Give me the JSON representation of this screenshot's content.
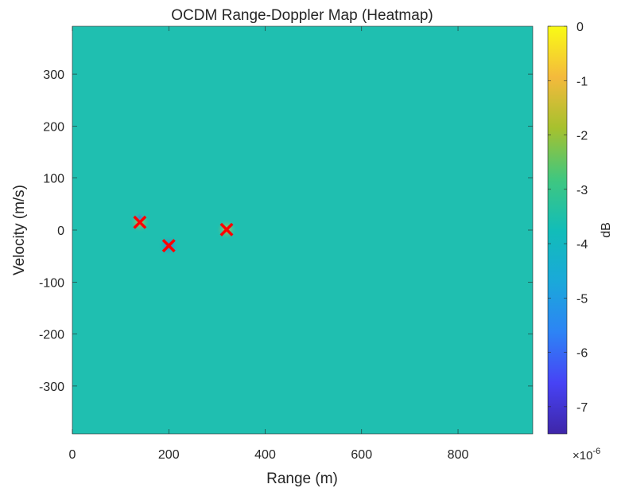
{
  "chart_data": {
    "type": "heatmap",
    "title": "OCDM Range-Doppler Map (Heatmap)",
    "xlabel": "Range (m)",
    "ylabel": "Velocity (m/s)",
    "xlim": [
      0,
      955
    ],
    "ylim": [
      -392,
      392
    ],
    "xticks": [
      0,
      200,
      400,
      600,
      800
    ],
    "yticks": [
      -300,
      -200,
      -100,
      0,
      100,
      200,
      300
    ],
    "grid": false,
    "background_value": -3.5,
    "targets": [
      {
        "range": 140,
        "velocity": 15,
        "marker": "x"
      },
      {
        "range": 200,
        "velocity": -30,
        "marker": "x"
      },
      {
        "range": 320,
        "velocity": 1,
        "marker": "x"
      }
    ],
    "marker_color": "#ff0000",
    "colormap": "parula",
    "colorbar": {
      "label": "dB",
      "min": -7.5,
      "max": 0,
      "ticks": [
        0,
        -1,
        -2,
        -3,
        -4,
        -5,
        -6,
        -7
      ],
      "multiplier": "×10",
      "exponent": "-6"
    }
  }
}
